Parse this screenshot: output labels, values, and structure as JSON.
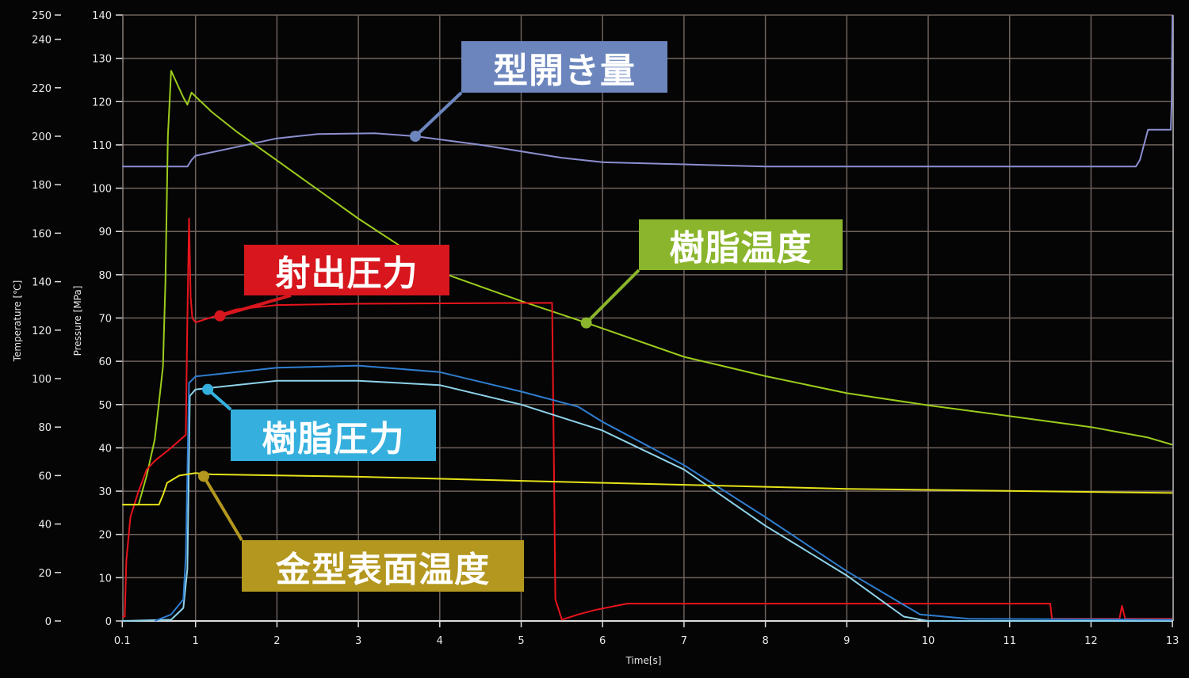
{
  "chart_data": {
    "type": "line",
    "xlabel": "Time[s]",
    "ylabel_left_outer": "Temperature [℃]",
    "ylabel_left_inner": "Pressure [MPa]",
    "xlim": [
      0.1,
      13
    ],
    "ylim_pressure": [
      0,
      140
    ],
    "ylim_temperature": [
      0,
      250
    ],
    "grid": true,
    "x_ticks": [
      "0.1",
      "1",
      "2",
      "3",
      "4",
      "5",
      "6",
      "7",
      "8",
      "9",
      "10",
      "11",
      "12",
      "13"
    ],
    "x_tick_values": [
      0.1,
      1,
      2,
      3,
      4,
      5,
      6,
      7,
      8,
      9,
      10,
      11,
      12,
      13
    ],
    "pressure_ticks": [
      0,
      10,
      20,
      30,
      40,
      50,
      60,
      70,
      80,
      90,
      100,
      110,
      120,
      130,
      140
    ],
    "temperature_ticks": [
      0,
      20,
      40,
      60,
      80,
      100,
      120,
      140,
      160,
      180,
      200,
      220,
      240,
      250
    ],
    "series": [
      {
        "name": "型開き量",
        "axis": "pressure",
        "color": "#8c8fd0",
        "label_color": "#6c86bd",
        "marker": [
          3.7,
          112
        ],
        "x": [
          0.1,
          0.9,
          0.95,
          1.0,
          1.5,
          2.0,
          2.5,
          3.2,
          3.7,
          4.5,
          5.0,
          5.5,
          6.0,
          7.0,
          8.0,
          12.55,
          12.6,
          12.65,
          12.7,
          12.98,
          12.99,
          13.0
        ],
        "y": [
          105,
          105,
          106.5,
          107.5,
          109.5,
          111.5,
          112.5,
          112.7,
          112,
          110,
          108.5,
          107,
          106,
          105.5,
          105,
          105,
          106.5,
          110,
          113.5,
          113.5,
          120,
          140
        ]
      },
      {
        "name": "樹脂温度",
        "axis": "temperature",
        "color": "#9ccc1c",
        "label_color": "#8ab52c",
        "marker": [
          5.8,
          123
        ],
        "x": [
          0.1,
          0.3,
          0.4,
          0.5,
          0.55,
          0.6,
          0.63,
          0.66,
          0.7,
          0.85,
          0.9,
          0.95,
          1.2,
          1.5,
          2.0,
          3.0,
          4.0,
          5.0,
          5.8,
          7.0,
          8.0,
          9.0,
          10.0,
          11.0,
          12.0,
          12.7,
          13.0
        ],
        "y": [
          48,
          48,
          60,
          75,
          90,
          105,
          140,
          200,
          227,
          216,
          213,
          218,
          210,
          202,
          190,
          166,
          144,
          132,
          123,
          109,
          101,
          94,
          89,
          84.5,
          80,
          75.7,
          72.7
        ]
      },
      {
        "name": "射出圧力",
        "axis": "pressure",
        "color": "#e8141c",
        "label_color": "#d7161d",
        "marker": [
          1.3,
          70.5
        ],
        "x": [
          0.1,
          0.13,
          0.15,
          0.2,
          0.3,
          0.4,
          0.5,
          0.7,
          0.88,
          0.9,
          0.92,
          0.94,
          0.96,
          1.0,
          1.5,
          2.0,
          3.0,
          5.38,
          5.4,
          5.42,
          5.5,
          5.7,
          5.9,
          6.3,
          11.5,
          11.52,
          12.35,
          12.38,
          12.42,
          13.0
        ],
        "y": [
          1,
          1,
          14,
          24,
          30,
          35,
          37,
          40,
          43,
          70,
          93,
          75,
          70,
          69,
          72,
          73,
          73.3,
          73.5,
          40,
          5,
          0.3,
          1.5,
          2.5,
          4,
          4,
          0.5,
          0.5,
          3.5,
          0.5,
          0.5
        ]
      },
      {
        "name": "樹脂圧力",
        "axis": "pressure",
        "color": "#8fd3ea",
        "label_color": "#35b0de",
        "marker": [
          1.15,
          53.5
        ],
        "x": [
          0.1,
          0.7,
          0.85,
          0.9,
          0.93,
          1.0,
          2.0,
          3.0,
          4.0,
          5.0,
          6.0,
          7.0,
          8.0,
          9.0,
          9.7,
          10.0,
          13.0
        ],
        "y": [
          0,
          0.3,
          3,
          12,
          52,
          53.5,
          55.5,
          55.5,
          54.5,
          50,
          44,
          35,
          22,
          10.5,
          1,
          0,
          0
        ]
      },
      {
        "name": "",
        "axis": "pressure",
        "color": "#2f7ed0",
        "label_color": "#2f7ed0",
        "x": [
          0.5,
          0.7,
          0.85,
          0.88,
          0.92,
          1.0,
          2.0,
          3.0,
          4.0,
          5.0,
          5.7,
          6.0,
          7.0,
          8.0,
          9.0,
          9.9,
          10.5,
          13.0
        ],
        "y": [
          0,
          1.5,
          5,
          15,
          55,
          56.5,
          58.5,
          59,
          57.5,
          53,
          49.5,
          46,
          36,
          24,
          11.5,
          1.5,
          0.5,
          0.3
        ]
      },
      {
        "name": "金型表面温度",
        "axis": "temperature",
        "color": "#e6e21a",
        "label_color": "#b3971e",
        "marker": [
          1.1,
          59.7
        ],
        "x": [
          0.1,
          0.55,
          0.6,
          0.65,
          0.8,
          1.0,
          1.2,
          3.0,
          6.0,
          9.0,
          13.0
        ],
        "y": [
          48,
          48,
          52,
          57,
          60,
          61,
          60.5,
          59.5,
          57,
          54.5,
          52.8
        ]
      }
    ]
  }
}
